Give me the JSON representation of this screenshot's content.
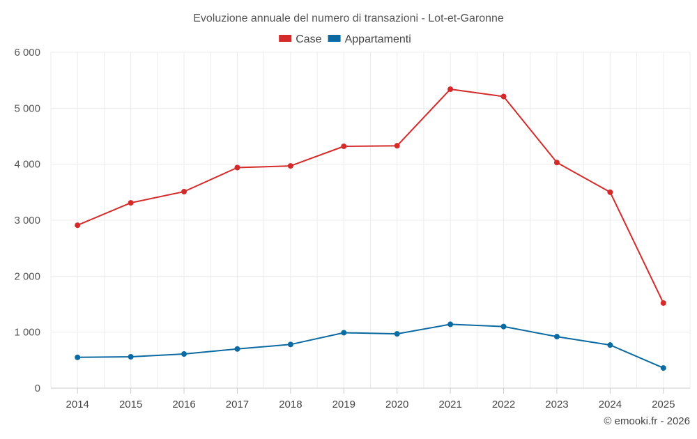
{
  "chart_data": {
    "type": "line",
    "title": "Evoluzione annuale del numero di transazioni - Lot-et-Garonne",
    "categories": [
      "2014",
      "2015",
      "2016",
      "2017",
      "2018",
      "2019",
      "2020",
      "2021",
      "2022",
      "2023",
      "2024",
      "2025"
    ],
    "series": [
      {
        "name": "Case",
        "color": "#d42a2a",
        "values": [
          2910,
          3310,
          3510,
          3940,
          3970,
          4320,
          4330,
          5340,
          5210,
          4030,
          3500,
          1520
        ]
      },
      {
        "name": "Appartamenti",
        "color": "#0a6aa1",
        "values": [
          550,
          560,
          610,
          700,
          780,
          990,
          970,
          1140,
          1100,
          920,
          770,
          360
        ]
      }
    ],
    "ylim": [
      0,
      6000
    ],
    "yticks": [
      0,
      1000,
      2000,
      3000,
      4000,
      5000,
      6000
    ],
    "ytick_labels": [
      "0",
      "1 000",
      "2 000",
      "3 000",
      "4 000",
      "5 000",
      "6 000"
    ],
    "xlabel": "",
    "ylabel": "",
    "grid": true,
    "legend_position": "top-center"
  },
  "credit": "© emooki.fr - 2026"
}
